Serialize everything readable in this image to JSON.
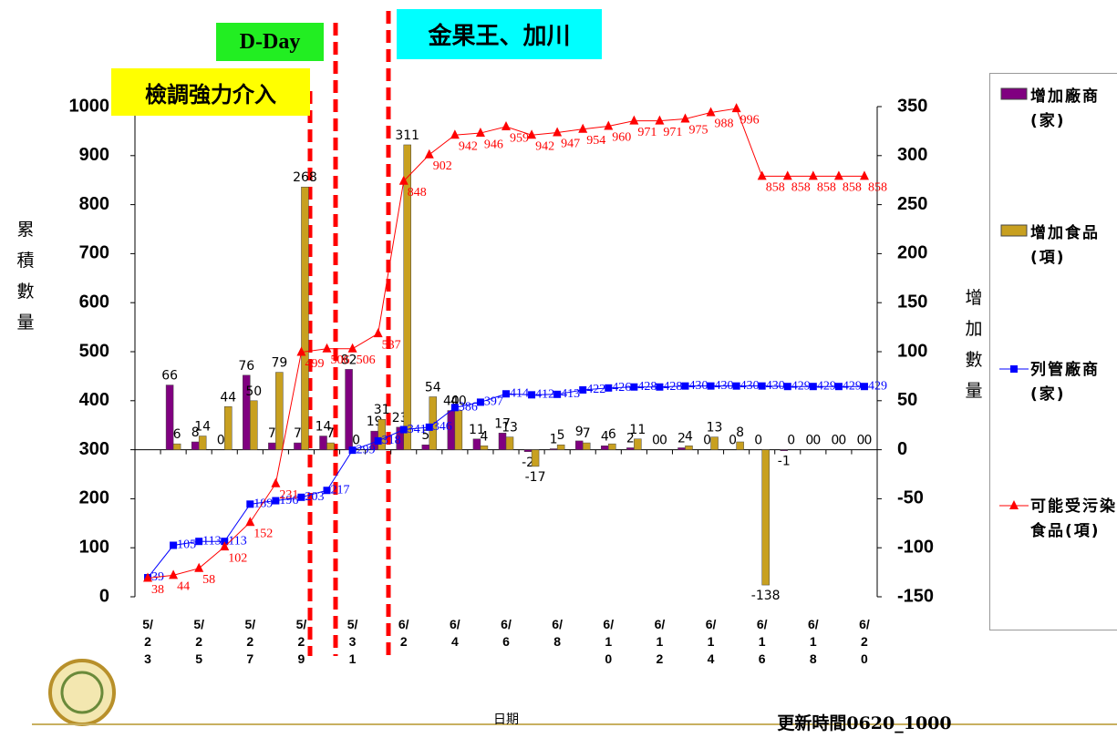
{
  "chart_data": {
    "type": "combo",
    "categories": [
      "5/23",
      null,
      "5/25",
      null,
      "5/27",
      null,
      "5/29",
      null,
      "5/31",
      null,
      "6/2",
      null,
      "6/4",
      null,
      "6/6",
      null,
      "6/8",
      null,
      "6/10",
      null,
      "6/12",
      null,
      "6/14",
      null,
      "6/16",
      null,
      "6/18",
      null,
      "6/20"
    ],
    "series": [
      {
        "name": "增加廠商(家)",
        "type": "bar",
        "axis": "y2",
        "color": "#800080",
        "values": [
          null,
          66,
          8,
          0,
          76,
          7,
          7,
          14,
          82,
          19,
          23,
          5,
          40,
          11,
          17,
          -2,
          1,
          9,
          4,
          2,
          0,
          2,
          0,
          0,
          0,
          -1,
          0,
          0,
          0
        ]
      },
      {
        "name": "增加食品(項)",
        "type": "bar",
        "axis": "y2",
        "color": "#c8a020",
        "values": [
          null,
          6,
          14,
          44,
          50,
          79,
          268,
          7,
          0,
          31,
          311,
          54,
          40,
          4,
          13,
          -17,
          5,
          7,
          6,
          11,
          0,
          4,
          13,
          8,
          -138,
          0,
          0,
          0,
          0
        ]
      },
      {
        "name": "列管廠商(家)",
        "type": "line",
        "marker": "square",
        "color": "#0000ff",
        "values": [
          39,
          105,
          113,
          113,
          189,
          196,
          203,
          217,
          299,
          318,
          341,
          346,
          386,
          397,
          414,
          412,
          413,
          422,
          426,
          428,
          428,
          430,
          430,
          430,
          430,
          429,
          429,
          429,
          429
        ]
      },
      {
        "name": "可能受污染食品(項)",
        "type": "line",
        "marker": "triangle",
        "color": "#ff0000",
        "values": [
          38,
          44,
          58,
          102,
          152,
          231,
          499,
          506,
          506,
          537,
          848,
          902,
          942,
          946,
          959,
          942,
          947,
          954,
          960,
          971,
          971,
          975,
          988,
          996,
          858,
          858,
          858,
          858,
          858
        ]
      }
    ],
    "ylabel": "累積數量",
    "y2label": "增加數量",
    "xlabel": "日期",
    "ylim": [
      0,
      1000
    ],
    "yticks": [
      0,
      100,
      200,
      300,
      400,
      500,
      600,
      700,
      800,
      900,
      1000
    ],
    "y2lim": [
      -150,
      350
    ],
    "y2ticks": [
      -150,
      -100,
      -50,
      0,
      50,
      100,
      150,
      200,
      250,
      300,
      350
    ],
    "annotations": [
      "D-Day",
      "金果王、加川",
      "檢調強力介入"
    ],
    "update_time": "更新時間0620_1000",
    "grid": false,
    "legend": "right"
  }
}
